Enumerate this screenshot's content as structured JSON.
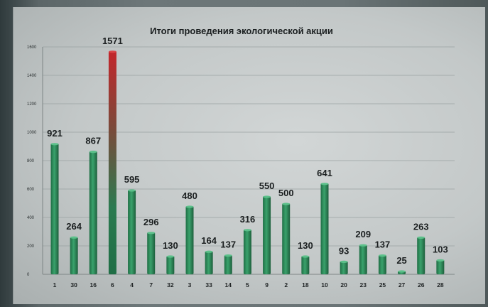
{
  "chart_data": {
    "type": "bar",
    "title": "Итоги проведения экологической акции",
    "xlabel": "",
    "ylabel": "",
    "categories": [
      "1",
      "30",
      "16",
      "6",
      "4",
      "7",
      "32",
      "3",
      "33",
      "14",
      "5",
      "9",
      "2",
      "18",
      "10",
      "20",
      "23",
      "25",
      "27",
      "26",
      "28"
    ],
    "values": [
      921,
      264,
      867,
      1571,
      595,
      296,
      130,
      480,
      164,
      137,
      316,
      550,
      500,
      130,
      641,
      93,
      209,
      137,
      25,
      263,
      103
    ],
    "data_labels": [
      "921",
      "264",
      "867",
      "1571",
      "595",
      "296",
      "130",
      "480",
      "164",
      "137",
      "316",
      "550",
      "500",
      "130",
      "641",
      "93",
      "209",
      "137",
      "25",
      "263",
      "103"
    ],
    "y_ticks": [
      "0",
      "200",
      "400",
      "600",
      "800",
      "1000",
      "1200",
      "1400",
      "1600"
    ],
    "ylim": [
      0,
      1600
    ],
    "grid": true,
    "legend": "none",
    "bar_color": "#2f8a5c",
    "highlight_color": "#b8262a",
    "highlight_index": 3
  }
}
